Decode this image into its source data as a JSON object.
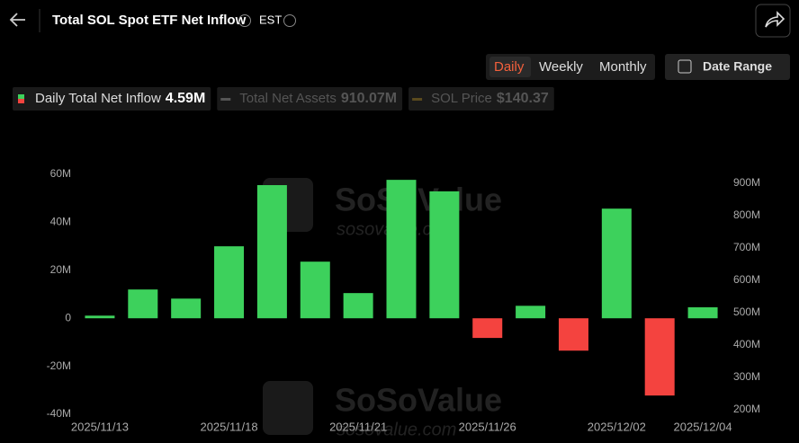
{
  "header": {
    "title": "Total SOL Spot ETF Net Inflow",
    "timezone": "EST"
  },
  "controls": {
    "tabs": [
      "Daily",
      "Weekly",
      "Monthly"
    ],
    "active_tab": 0,
    "date_range": "Date Range"
  },
  "watermark": {
    "brand": "SoSoValue",
    "url": "sosovalue.com"
  },
  "chart_data": {
    "type": "bar",
    "legend": [
      {
        "name": "Daily Total Net Inflow",
        "value": "4.59M",
        "color": "#3dd15c",
        "color2": "#f4433f",
        "active": true
      },
      {
        "name": "Total Net Assets",
        "value": "910.07M",
        "color": "#555555",
        "active": false
      },
      {
        "name": "SOL Price",
        "value": "$140.37",
        "color": "#5a4a1e",
        "active": false
      }
    ],
    "categories": [
      "2025/11/13",
      null,
      null,
      "2025/11/18",
      null,
      null,
      "2025/11/21",
      null,
      null,
      "2025/11/26",
      null,
      null,
      "2025/12/02",
      null,
      "2025/12/04"
    ],
    "series": [
      {
        "name": "Daily Total Net Inflow",
        "color": "#3dd15c",
        "negative_color": "#f4433f",
        "values": [
          1.1,
          12.0,
          8.2,
          30.0,
          55.5,
          23.6,
          10.5,
          57.7,
          52.9,
          -8.2,
          5.2,
          -13.5,
          45.7,
          -32.2,
          4.59
        ]
      }
    ],
    "ylim": [
      -40,
      60
    ],
    "yticks": [
      {
        "value": -40,
        "label": "-40M"
      },
      {
        "value": -20,
        "label": "-20M"
      },
      {
        "value": 0,
        "label": "0"
      },
      {
        "value": 20,
        "label": "20M"
      },
      {
        "value": 40,
        "label": "40M"
      },
      {
        "value": 60,
        "label": "60M"
      }
    ],
    "y2lim": [
      186,
      928
    ],
    "y2ticks": [
      {
        "value": 200,
        "label": "200M"
      },
      {
        "value": 300,
        "label": "300M"
      },
      {
        "value": 400,
        "label": "400M"
      },
      {
        "value": 500,
        "label": "500M"
      },
      {
        "value": 600,
        "label": "600M"
      },
      {
        "value": 700,
        "label": "700M"
      },
      {
        "value": 800,
        "label": "800M"
      },
      {
        "value": 900,
        "label": "900M"
      }
    ],
    "grid": false
  }
}
